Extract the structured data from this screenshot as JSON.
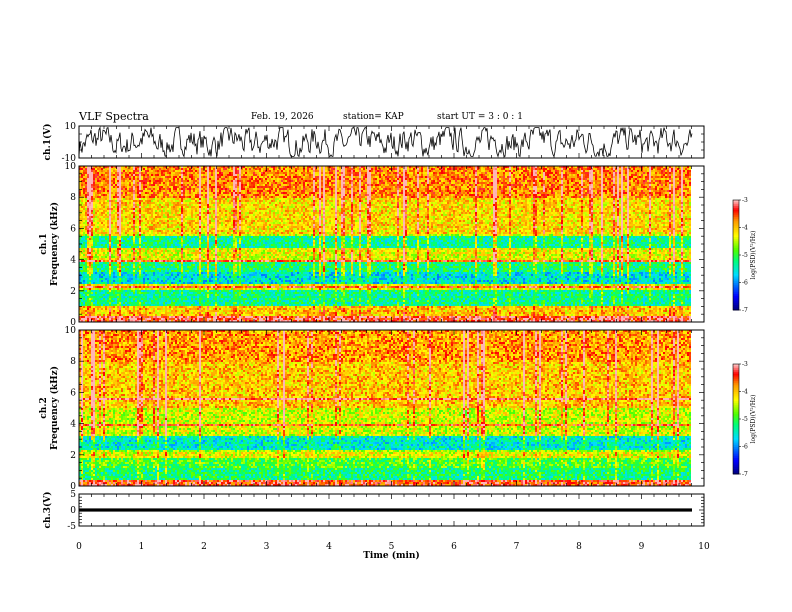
{
  "header": {
    "title": "VLF Spectra",
    "date": "Feb. 19, 2026",
    "station": "station= KAP",
    "start_ut": "start  UT =  3 : 0  : 1"
  },
  "chart_data": [
    {
      "type": "line",
      "panel": "waveform-ch1",
      "ylabel": "ch.1(V)",
      "ylim": [
        -10,
        10
      ],
      "yticks": [
        "10",
        "-10"
      ],
      "xlim": [
        0,
        10
      ],
      "x_range": [
        0,
        9.85
      ],
      "mean": 0,
      "amplitude_approx": 6
    },
    {
      "type": "heatmap",
      "panel": "spectrogram-ch1",
      "ylabel": "ch.1\nFrequency (kHz)",
      "ylim": [
        0,
        10
      ],
      "yticks": [
        "0",
        "2",
        "4",
        "6",
        "8",
        "10"
      ],
      "xlim": [
        0,
        10
      ],
      "x_range": [
        0,
        9.85
      ],
      "colorbar": {
        "label": "log(PSD)(V²/Hz)",
        "range": [
          -7,
          -3
        ],
        "ticks": [
          "-7",
          "-6",
          "-5",
          "-4",
          "-3"
        ]
      },
      "bands": [
        {
          "f": [
            0.0,
            0.4
          ],
          "level": -3.3
        },
        {
          "f": [
            0.4,
            1.0
          ],
          "level": -4.0
        },
        {
          "f": [
            1.0,
            2.0
          ],
          "level": -5.3
        },
        {
          "f": [
            2.0,
            2.4
          ],
          "level": -4.3
        },
        {
          "f": [
            2.4,
            3.2
          ],
          "level": -5.6
        },
        {
          "f": [
            3.2,
            3.9
          ],
          "level": -5.2
        },
        {
          "f": [
            3.9,
            4.8
          ],
          "level": -4.3
        },
        {
          "f": [
            4.8,
            5.6
          ],
          "level": -5.3
        },
        {
          "f": [
            5.6,
            8.0
          ],
          "level": -4.1
        },
        {
          "f": [
            8.0,
            10.0
          ],
          "level": -3.7
        }
      ]
    },
    {
      "type": "heatmap",
      "panel": "spectrogram-ch2",
      "ylabel": "ch.2\nFrequency (kHz)",
      "ylim": [
        0,
        10
      ],
      "yticks": [
        "0",
        "2",
        "4",
        "6",
        "8",
        "10"
      ],
      "xlim": [
        0,
        10
      ],
      "x_range": [
        0,
        9.85
      ],
      "colorbar": {
        "label": "log(PSD)(V²/Hz)",
        "range": [
          -7,
          -3
        ],
        "ticks": [
          "-7",
          "-6",
          "-5",
          "-4",
          "-3"
        ]
      },
      "bands": [
        {
          "f": [
            0.0,
            0.4
          ],
          "level": -3.4
        },
        {
          "f": [
            0.4,
            1.2
          ],
          "level": -5.2
        },
        {
          "f": [
            1.2,
            1.8
          ],
          "level": -4.9
        },
        {
          "f": [
            1.8,
            2.2
          ],
          "level": -4.3
        },
        {
          "f": [
            2.2,
            3.2
          ],
          "level": -5.5
        },
        {
          "f": [
            3.2,
            5.0
          ],
          "level": -4.4
        },
        {
          "f": [
            5.0,
            8.0
          ],
          "level": -4.0
        },
        {
          "f": [
            8.0,
            10.0
          ],
          "level": -3.8
        }
      ]
    },
    {
      "type": "line",
      "panel": "waveform-ch3",
      "ylabel": "ch.3(V)",
      "ylim": [
        -5,
        5
      ],
      "yticks": [
        "5",
        "0",
        "-5"
      ],
      "xlim": [
        0,
        10
      ],
      "x_range": [
        0,
        9.85
      ],
      "mean": 0,
      "amplitude_approx": 0.5,
      "xlabel": "Time (min)",
      "xticks": [
        "0",
        "1",
        "2",
        "3",
        "4",
        "5",
        "6",
        "7",
        "8",
        "9",
        "10"
      ]
    }
  ],
  "colors": {
    "background": "#ffffff",
    "axes": "#000000",
    "waveform": "#000000"
  }
}
